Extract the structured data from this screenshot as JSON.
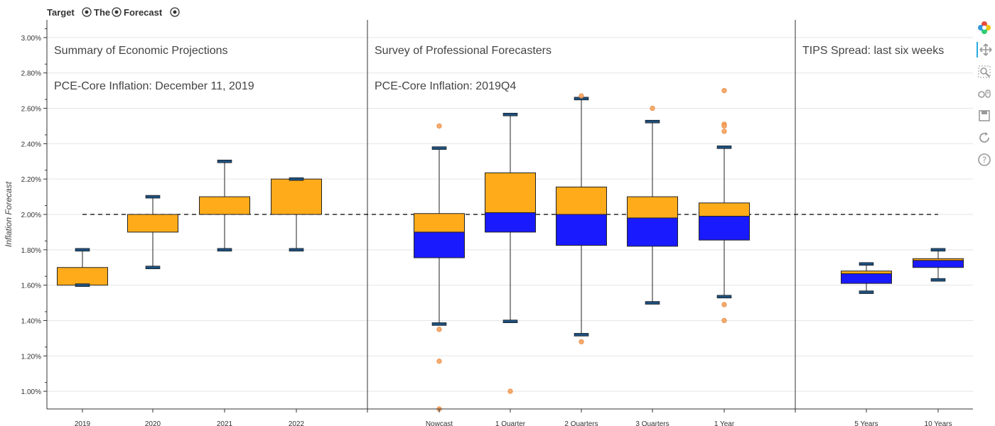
{
  "title": "Target​🎯​The​🎯​Forecast🎯",
  "title_parts": [
    "Target",
    "The",
    "Forecast"
  ],
  "toolbar": {
    "tools": [
      "bokeh-logo-icon",
      "pan-icon",
      "box-zoom-icon",
      "wheel-zoom-icon",
      "save-icon",
      "reset-icon",
      "help-icon"
    ]
  },
  "colors": {
    "upper_box": "#FFAB1A",
    "lower_box": "#1A1AFF",
    "whisker_cap": "#1F4E79",
    "outlier": "#F4A460",
    "target_line": "#000000"
  },
  "panels": [
    {
      "title": "Summary of Economic Projections",
      "subtitle": "PCE-Core Inflation: December 11, 2019"
    },
    {
      "title": "Survey of Professional Forecasters",
      "subtitle": "PCE-Core Inflation: 2019Q4"
    },
    {
      "title": "TIPS Spread: last six weeks",
      "subtitle": ""
    }
  ],
  "chart_data": {
    "type": "box",
    "ylabel": "Inflation Forecast",
    "ylim": [
      0.9,
      3.1
    ],
    "y_ticks": [
      "1.00%",
      "1.20%",
      "1.40%",
      "1.60%",
      "1.80%",
      "2.00%",
      "2.20%",
      "2.40%",
      "2.60%",
      "2.80%",
      "3.00%"
    ],
    "y_tick_values": [
      1.0,
      1.2,
      1.4,
      1.6,
      1.8,
      2.0,
      2.2,
      2.4,
      2.6,
      2.8,
      3.0
    ],
    "target": 2.0,
    "grid": true,
    "boxes": [
      {
        "category": "2019",
        "panel": 0,
        "whisker_low": 1.6,
        "q1": 1.6,
        "median": 1.6,
        "q3": 1.7,
        "whisker_high": 1.8,
        "outliers": []
      },
      {
        "category": "2020",
        "panel": 0,
        "whisker_low": 1.7,
        "q1": 1.9,
        "median": 1.9,
        "q3": 2.0,
        "whisker_high": 2.1,
        "outliers": []
      },
      {
        "category": "2021",
        "panel": 0,
        "whisker_low": 1.8,
        "q1": 2.0,
        "median": 2.0,
        "q3": 2.1,
        "whisker_high": 2.3,
        "outliers": []
      },
      {
        "category": "2022",
        "panel": 0,
        "whisker_low": 1.8,
        "q1": 2.0,
        "median": 2.0,
        "q3": 2.2,
        "whisker_high": 2.2,
        "outliers": []
      },
      {
        "category": "Nowcast",
        "panel": 1,
        "whisker_low": 1.38,
        "q1": 1.755,
        "median": 1.9,
        "q3": 2.005,
        "whisker_high": 2.375,
        "outliers": [
          2.5,
          1.35,
          1.17,
          0.9
        ]
      },
      {
        "category": "1 Quarter",
        "panel": 1,
        "whisker_low": 1.395,
        "q1": 1.9,
        "median": 2.01,
        "q3": 2.235,
        "whisker_high": 2.565,
        "outliers": [
          1.0
        ]
      },
      {
        "category": "2 Quarters",
        "panel": 1,
        "whisker_low": 1.32,
        "q1": 1.825,
        "median": 2.0,
        "q3": 2.155,
        "whisker_high": 2.655,
        "outliers": [
          2.67,
          1.28
        ]
      },
      {
        "category": "3 Quarters",
        "panel": 1,
        "whisker_low": 1.5,
        "q1": 1.82,
        "median": 1.98,
        "q3": 2.1,
        "whisker_high": 2.525,
        "outliers": [
          2.6
        ]
      },
      {
        "category": "1 Year",
        "panel": 1,
        "whisker_low": 1.535,
        "q1": 1.855,
        "median": 1.99,
        "q3": 2.065,
        "whisker_high": 2.38,
        "outliers": [
          2.7,
          2.51,
          2.5,
          2.47,
          1.49,
          1.4
        ]
      },
      {
        "category": "5 Years",
        "panel": 2,
        "whisker_low": 1.56,
        "q1": 1.61,
        "median": 1.665,
        "q3": 1.68,
        "whisker_high": 1.72,
        "outliers": []
      },
      {
        "category": "10 Years",
        "panel": 2,
        "whisker_low": 1.63,
        "q1": 1.7,
        "median": 1.74,
        "q3": 1.75,
        "whisker_high": 1.8,
        "outliers": []
      }
    ]
  }
}
